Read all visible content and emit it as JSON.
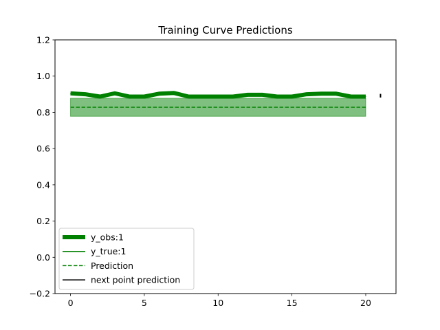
{
  "chart_data": {
    "type": "line",
    "title": "Training Curve Predictions",
    "xlabel": "",
    "ylabel": "",
    "xlim": [
      -1.05,
      22.05
    ],
    "ylim": [
      -0.2,
      1.2
    ],
    "xticks": [
      0,
      5,
      10,
      15,
      20
    ],
    "xtick_labels": [
      "0",
      "5",
      "10",
      "15",
      "20"
    ],
    "yticks": [
      -0.2,
      0.0,
      0.2,
      0.4,
      0.6,
      0.8,
      1.0,
      1.2
    ],
    "ytick_labels": [
      "−0.2",
      "0.0",
      "0.2",
      "0.4",
      "0.6",
      "0.8",
      "1.0",
      "1.2"
    ],
    "grid": false,
    "legend_position": "lower-left",
    "series": [
      {
        "name": "y_obs:1",
        "kind": "thick-line",
        "color": "#008000",
        "x": [
          0,
          1,
          2,
          3,
          4,
          5,
          6,
          7,
          8,
          9,
          10,
          11,
          12,
          13,
          14,
          15,
          16,
          17,
          18,
          19,
          20
        ],
        "values": [
          0.905,
          0.9,
          0.887,
          0.905,
          0.887,
          0.887,
          0.903,
          0.907,
          0.887,
          0.887,
          0.887,
          0.887,
          0.897,
          0.897,
          0.887,
          0.887,
          0.9,
          0.903,
          0.903,
          0.887,
          0.887
        ]
      },
      {
        "name": "y_true:1",
        "kind": "line",
        "color": "#008000",
        "x": [],
        "values": []
      },
      {
        "name": "Prediction",
        "kind": "dashed-line",
        "color": "#008000",
        "x": [
          0,
          20
        ],
        "values": [
          0.828,
          0.828
        ],
        "band_lower": 0.778,
        "band_upper": 0.878,
        "band_color": "#008000"
      },
      {
        "name": "next point prediction",
        "kind": "errorbar",
        "color": "#000000",
        "x": [
          21
        ],
        "low": [
          0.882
        ],
        "high": [
          0.902
        ]
      }
    ]
  }
}
